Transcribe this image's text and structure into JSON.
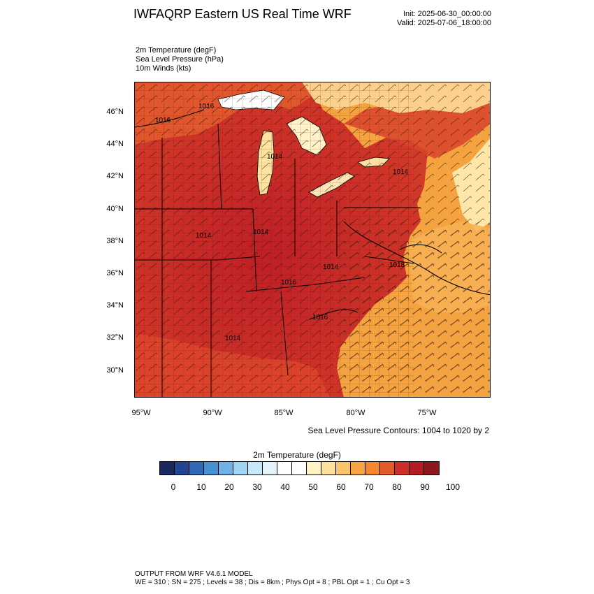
{
  "header": {
    "title": "IWFAQRP Eastern US Real Time WRF",
    "init": "Init: 2025-06-30_00:00:00",
    "valid": "Valid: 2025-07-06_18:00:00"
  },
  "variables": [
    "2m Temperature   (degF)",
    "Sea Level Pressure   (hPa)",
    "10m Winds   (kts)"
  ],
  "map": {
    "lat_labels": [
      "46°N",
      "44°N",
      "42°N",
      "40°N",
      "38°N",
      "36°N",
      "34°N",
      "32°N",
      "30°N"
    ],
    "lon_labels": [
      "95°W",
      "90°W",
      "85°W",
      "80°W",
      "75°W"
    ],
    "lat_range": [
      28.5,
      48.0
    ],
    "lon_range": [
      -95.5,
      -70.5
    ],
    "pressure_labels": [
      "1016",
      "1016",
      "1014",
      "1014",
      "1014",
      "1014",
      "1014",
      "1016",
      "1016",
      "1018",
      "1014"
    ],
    "colors": {
      "ocean_warm": "#f4a340",
      "land_hot": "#c0242a",
      "land_warm": "#e0562e",
      "lake": "#ffffff"
    }
  },
  "contour_note": "Sea Level Pressure Contours: 1004 to 1020 by 2",
  "colorbar": {
    "title": "2m Temperature  (degF)",
    "colors": [
      "#1b2a5e",
      "#22458f",
      "#2f69b6",
      "#4891d0",
      "#6fb3e6",
      "#9fd5f3",
      "#c6e7f8",
      "#e3f3fb",
      "#ffffff",
      "#ffffff",
      "#fff3c4",
      "#fde09a",
      "#fbc46a",
      "#f7a544",
      "#f3862f",
      "#e45a2b",
      "#cd2f28",
      "#b01d24",
      "#8c171d"
    ],
    "labels": [
      "0",
      "10",
      "20",
      "30",
      "40",
      "50",
      "60",
      "70",
      "80",
      "90",
      "100"
    ]
  },
  "footer": {
    "line1": "OUTPUT FROM WRF V4.6.1 MODEL",
    "line2": "WE = 310 ; SN = 275 ; Levels = 38 ; Dis = 8km ; Phys Opt = 8 ; PBL Opt = 1 ; Cu Opt = 3"
  }
}
